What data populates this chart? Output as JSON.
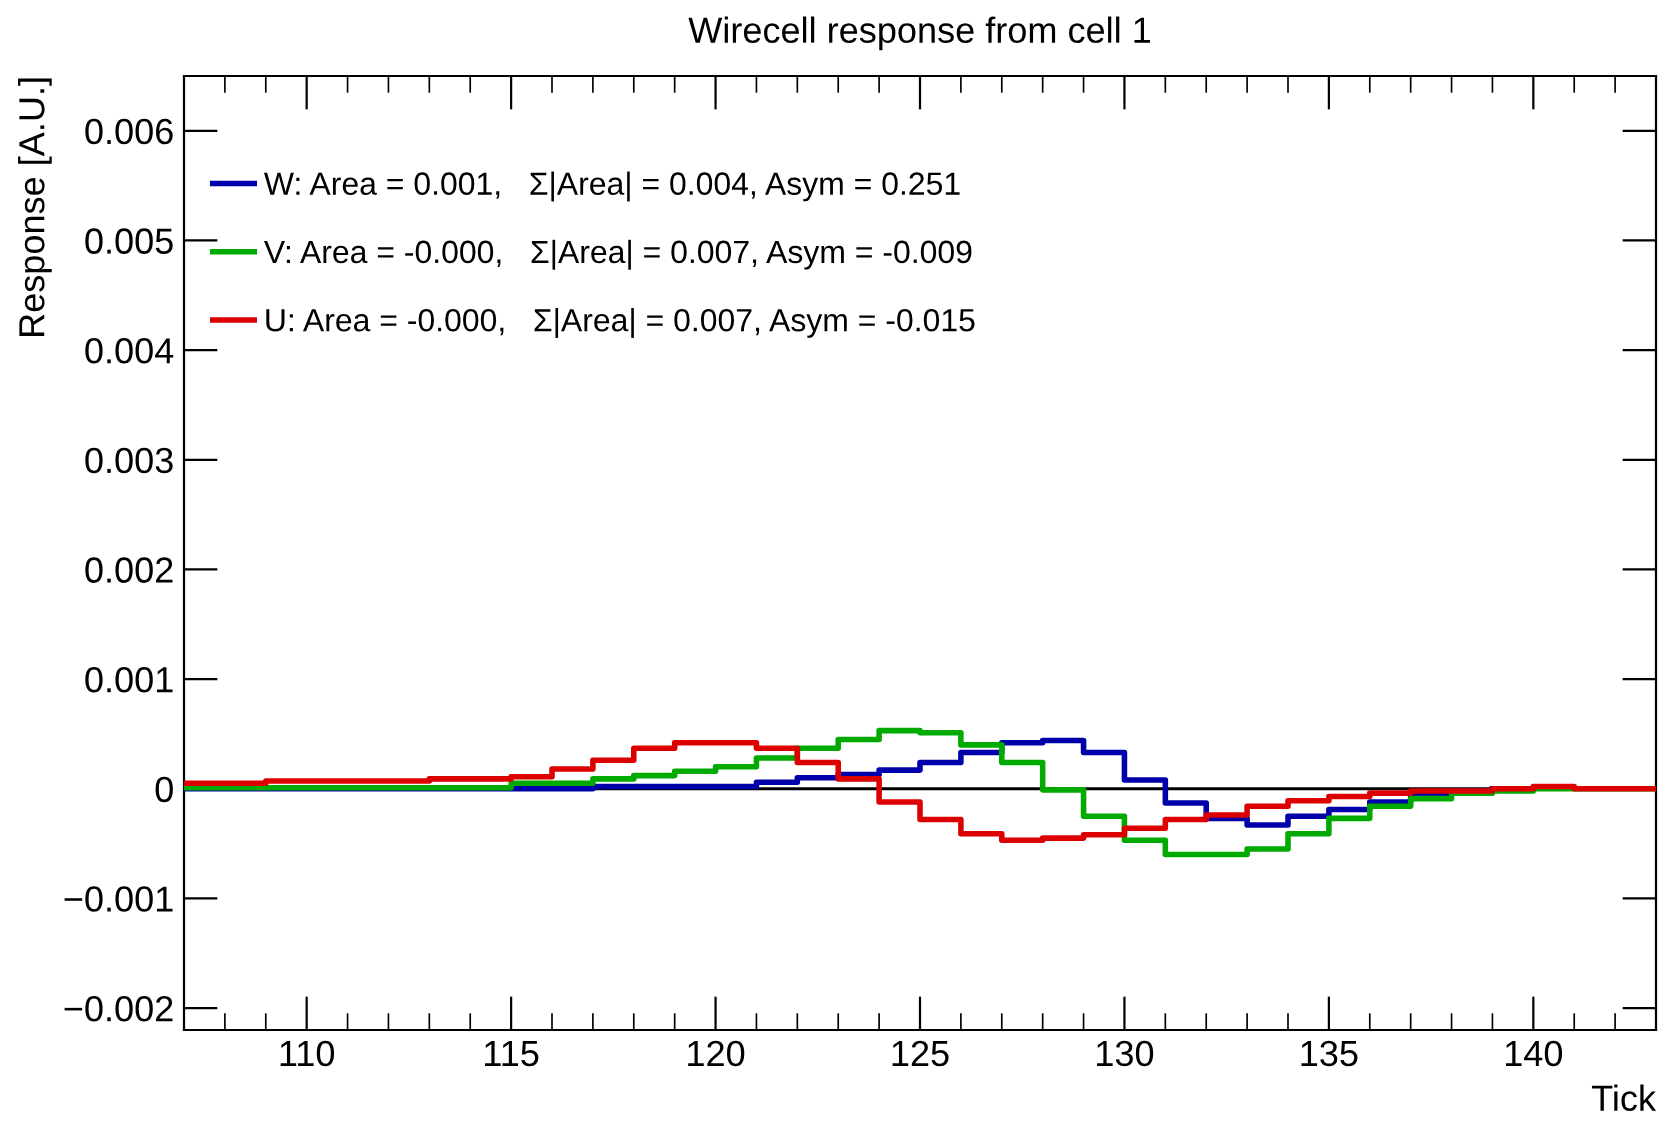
{
  "chart_data": {
    "type": "step",
    "title": "Wirecell response from cell 1",
    "xlabel": "Tick",
    "ylabel": "Response [A.U.]",
    "x": [
      107,
      108,
      109,
      110,
      111,
      112,
      113,
      114,
      115,
      116,
      117,
      118,
      119,
      120,
      121,
      122,
      123,
      124,
      125,
      126,
      127,
      128,
      129,
      130,
      131,
      132,
      133,
      134,
      135,
      136,
      137,
      138,
      139,
      140,
      141,
      142,
      143
    ],
    "series": [
      {
        "name": "W: Area = 0.001,   Σ|Area| = 0.004, Asym = 0.251",
        "color": "#0000aa",
        "values": [
          0,
          0,
          0,
          0,
          0,
          0,
          0,
          0,
          0,
          0,
          2e-05,
          2e-05,
          2e-05,
          2e-05,
          6e-05,
          0.0001,
          0.00013,
          0.00017,
          0.00024,
          0.00033,
          0.00042,
          0.00044,
          0.00033,
          8e-05,
          -0.00013,
          -0.00027,
          -0.00033,
          -0.00025,
          -0.00019,
          -0.00012,
          -6e-05,
          -2e-05,
          0,
          null,
          null,
          null,
          null
        ]
      },
      {
        "name": "V: Area = -0.000,   Σ|Area| = 0.007, Asym = -0.009",
        "color": "#00aa00",
        "values": [
          1e-05,
          1e-05,
          1e-05,
          1e-05,
          1e-05,
          1e-05,
          1e-05,
          1e-05,
          5e-05,
          5e-05,
          9e-05,
          0.00012,
          0.00016,
          0.0002,
          0.00028,
          0.00037,
          0.00045,
          0.00053,
          0.00051,
          0.0004,
          0.00024,
          -1e-05,
          -0.00025,
          -0.00047,
          -0.0006,
          -0.0006,
          -0.00055,
          -0.00041,
          -0.00027,
          -0.00016,
          -9e-05,
          -4e-05,
          -2e-05,
          0,
          0,
          0,
          0
        ]
      },
      {
        "name": "U: Area = -0.000,   Σ|Area| = 0.007, Asym = -0.015",
        "color": "#dd0000",
        "values": [
          5e-05,
          5e-05,
          7e-05,
          7e-05,
          7e-05,
          7e-05,
          9e-05,
          9e-05,
          0.00011,
          0.00018,
          0.00026,
          0.00037,
          0.00042,
          0.00042,
          0.00037,
          0.00024,
          9e-05,
          -0.00012,
          -0.00028,
          -0.00041,
          -0.00047,
          -0.00045,
          -0.00042,
          -0.00036,
          -0.00028,
          -0.00024,
          -0.00016,
          -0.00011,
          -7e-05,
          -4e-05,
          -2e-05,
          -2e-05,
          0,
          2e-05,
          0,
          0,
          0
        ]
      }
    ],
    "xlim": [
      107,
      143
    ],
    "xticks": [
      110,
      115,
      120,
      125,
      130,
      135,
      140
    ],
    "ylim": [
      -0.0022,
      0.0065
    ],
    "yticks": [
      {
        "value": -0.002,
        "label": "−0.002"
      },
      {
        "value": -0.001,
        "label": "−0.001"
      },
      0,
      0.001,
      0.002,
      0.003,
      0.004,
      0.005,
      0.006
    ],
    "ref_lines": [
      {
        "axis": "y",
        "value": 0,
        "color": "#000000"
      }
    ],
    "legend": "top left",
    "grid": false,
    "line_style": "solid",
    "marker": "none"
  }
}
